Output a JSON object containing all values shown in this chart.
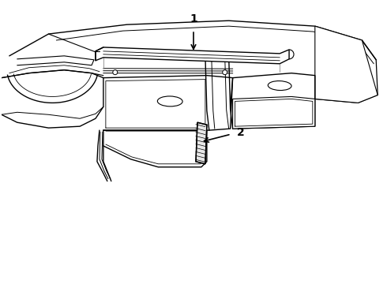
{
  "background_color": "#ffffff",
  "line_color": "#000000",
  "figsize": [
    4.9,
    3.6
  ],
  "dpi": 100,
  "label1": "1",
  "label2": "2"
}
